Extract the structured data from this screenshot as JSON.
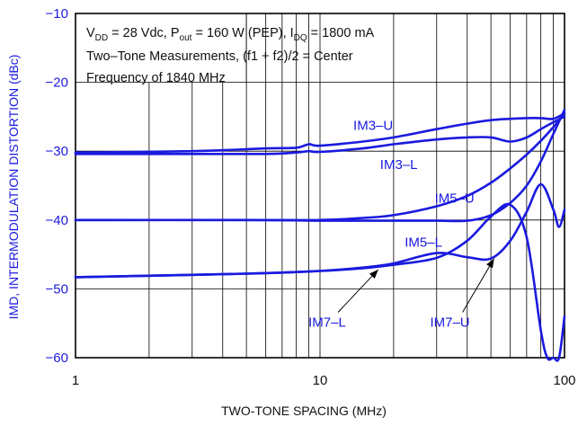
{
  "chart_data": {
    "type": "line",
    "x_scale": "log",
    "xlim": [
      1,
      100
    ],
    "ylim": [
      -60,
      -10
    ],
    "xlabel": "TWO-TONE SPACING (MHz)",
    "ylabel": "IMD, INTERMODULATION DISTORTION (dBc)",
    "x_ticks": [
      {
        "value": 1,
        "label": "1"
      },
      {
        "value": 10,
        "label": "10"
      },
      {
        "value": 100,
        "label": "100"
      }
    ],
    "y_ticks": [
      {
        "value": -10,
        "label": "−10"
      },
      {
        "value": -20,
        "label": "−20"
      },
      {
        "value": -30,
        "label": "−30"
      },
      {
        "value": -40,
        "label": "−40"
      },
      {
        "value": -50,
        "label": "−50"
      },
      {
        "value": -60,
        "label": "−60"
      }
    ],
    "grid": true,
    "conditions": {
      "line1": {
        "a": "V",
        "a_sub": "DD",
        "b": " = 28 Vdc, P",
        "b_sub": "out",
        "c": " = 160 W (PEP), I",
        "c_sub": "DQ",
        "d": " = 1800 mA"
      },
      "line2": "Two–Tone Measurements, (f1 + f2)/2 = Center",
      "line3": "Frequency of 1840 MHz"
    },
    "series": [
      {
        "name": "IM3–U",
        "x": [
          1,
          3,
          6,
          8,
          9,
          10,
          15,
          20,
          30,
          40,
          50,
          60,
          70,
          80,
          90,
          100
        ],
        "y": [
          -30.2,
          -30.0,
          -29.6,
          -29.5,
          -29.0,
          -29.2,
          -28.6,
          -28.0,
          -26.8,
          -26.0,
          -25.5,
          -25.3,
          -25.2,
          -25.2,
          -25.3,
          -24.5
        ]
      },
      {
        "name": "IM3–L",
        "x": [
          1,
          3,
          6,
          8,
          9,
          10,
          15,
          20,
          30,
          40,
          50,
          60,
          70,
          80,
          90,
          100
        ],
        "y": [
          -30.4,
          -30.4,
          -30.4,
          -30.2,
          -30.0,
          -30.1,
          -29.6,
          -29.0,
          -28.3,
          -28.0,
          -28.0,
          -28.6,
          -28.0,
          -26.8,
          -25.8,
          -25.0
        ]
      },
      {
        "name": "IM5–U",
        "x": [
          1,
          5,
          10,
          15,
          20,
          30,
          40,
          50,
          60,
          70,
          80,
          90,
          100
        ],
        "y": [
          -40.0,
          -40.0,
          -40.0,
          -39.7,
          -39.3,
          -38.0,
          -36.5,
          -34.6,
          -32.5,
          -30.5,
          -28.5,
          -26.5,
          -24.5
        ]
      },
      {
        "name": "IM5–L",
        "x": [
          1,
          5,
          10,
          15,
          20,
          30,
          40,
          50,
          60,
          70,
          80,
          90,
          100
        ],
        "y": [
          -40.0,
          -40.0,
          -40.1,
          -40.1,
          -40.1,
          -40.1,
          -40.1,
          -39.3,
          -37.5,
          -35.0,
          -31.5,
          -27.5,
          -24.0
        ]
      },
      {
        "name": "IM7–L",
        "x": [
          1,
          5,
          10,
          15,
          20,
          30,
          40,
          50,
          60,
          70,
          80,
          85,
          90,
          95,
          100
        ],
        "y": [
          -48.3,
          -47.8,
          -47.4,
          -47.0,
          -46.5,
          -45.5,
          -43.0,
          -39.5,
          -37.8,
          -42.5,
          -56.0,
          -60.0,
          -60.0,
          -60.0,
          -54.0
        ]
      },
      {
        "name": "IM7–U",
        "x": [
          1,
          5,
          10,
          15,
          20,
          30,
          40,
          50,
          60,
          70,
          80,
          90,
          95,
          100
        ],
        "y": [
          -48.3,
          -47.8,
          -47.4,
          -46.9,
          -46.3,
          -44.8,
          -45.4,
          -45.6,
          -43.0,
          -38.8,
          -34.8,
          -38.5,
          -41.0,
          -38.5
        ]
      }
    ],
    "annotations": [
      {
        "text": "IM3–U",
        "x": 16.5,
        "y": -26.9
      },
      {
        "text": "IM3–L",
        "x": 21.0,
        "y": -32.6
      },
      {
        "text": "IM5–U",
        "x": 35.5,
        "y": -37.5
      },
      {
        "text": "IM5–L",
        "x": 26.5,
        "y": -43.9
      },
      {
        "text": "IM7–L",
        "x": 10.7,
        "y": -55.5,
        "arrow_to": [
          17.3,
          -47.2
        ]
      },
      {
        "text": "IM7–U",
        "x": 34.0,
        "y": -55.5,
        "arrow_to": [
          51.5,
          -45.6
        ]
      }
    ],
    "colors": {
      "series": "#1a1adf",
      "axis_text": "#1a1adf",
      "title_text": "#111111",
      "grid": "#000000"
    }
  }
}
